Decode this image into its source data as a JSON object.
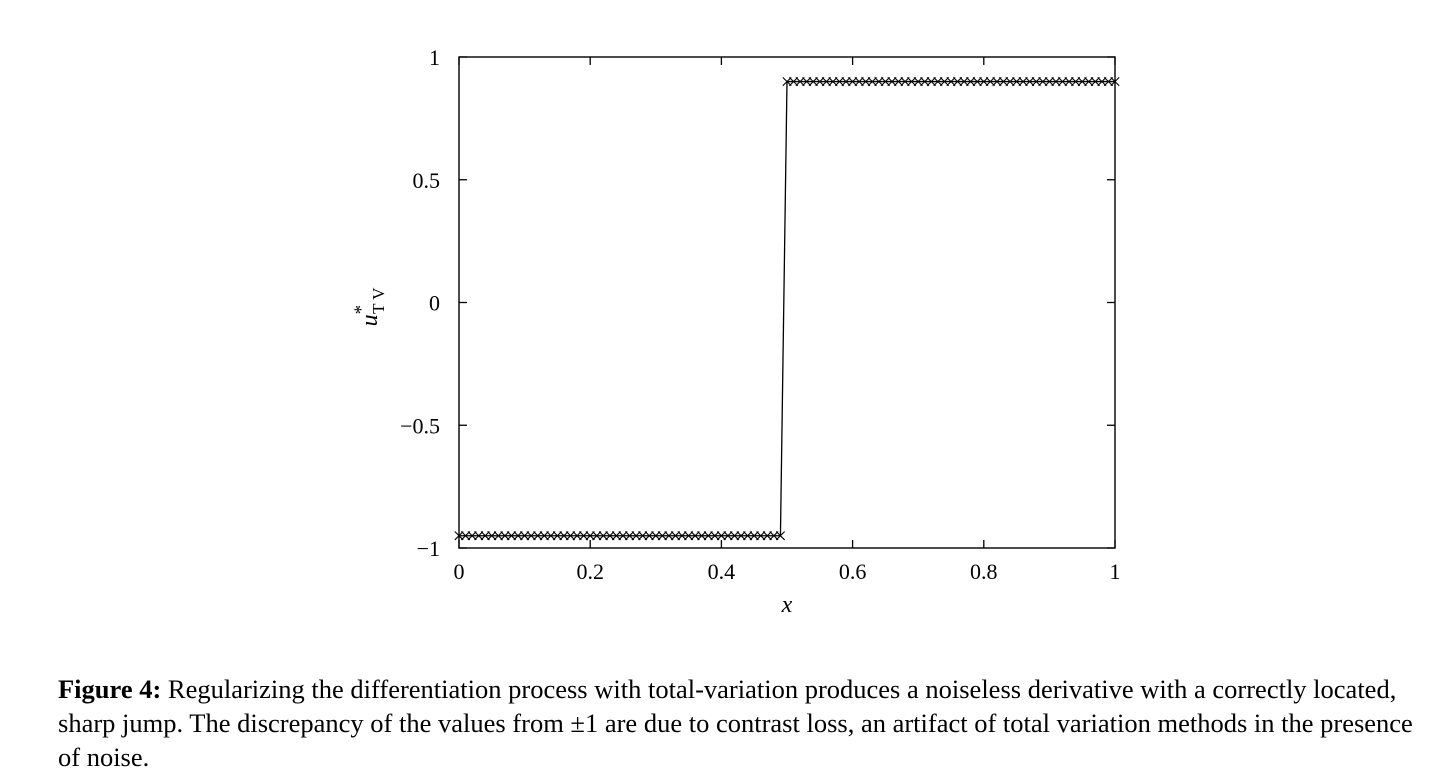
{
  "chart_data": {
    "type": "line",
    "xlabel": "x",
    "ylabel": {
      "base": "u",
      "superscript": "*",
      "subscript": "T V"
    },
    "xlim": [
      0,
      1
    ],
    "ylim": [
      -1,
      1
    ],
    "x_ticks": [
      0,
      0.2,
      0.4,
      0.6,
      0.8,
      1
    ],
    "x_tick_labels": [
      "0",
      "0.2",
      "0.4",
      "0.6",
      "0.8",
      "1"
    ],
    "y_ticks": [
      -1,
      -0.5,
      0,
      0.5,
      1
    ],
    "y_tick_labels": [
      "−1",
      "−0.5",
      "0",
      "0.5",
      "1"
    ],
    "grid": false,
    "series": [
      {
        "marker": "x",
        "color": "#000000",
        "segments": [
          {
            "x_start": 0,
            "x_end": 0.49,
            "y": -0.95
          },
          {
            "x_start": 0.5,
            "x_end": 1.0,
            "y": 0.9
          }
        ],
        "point_spacing": 0.01
      }
    ]
  },
  "caption": {
    "label": "Figure 4:",
    "text": " Regularizing the differentiation process with total-variation produces a noiseless derivative with a correctly located, sharp jump. The discrepancy of the values from ±1 are due to contrast loss, an artifact of total variation methods in the presence of noise."
  }
}
